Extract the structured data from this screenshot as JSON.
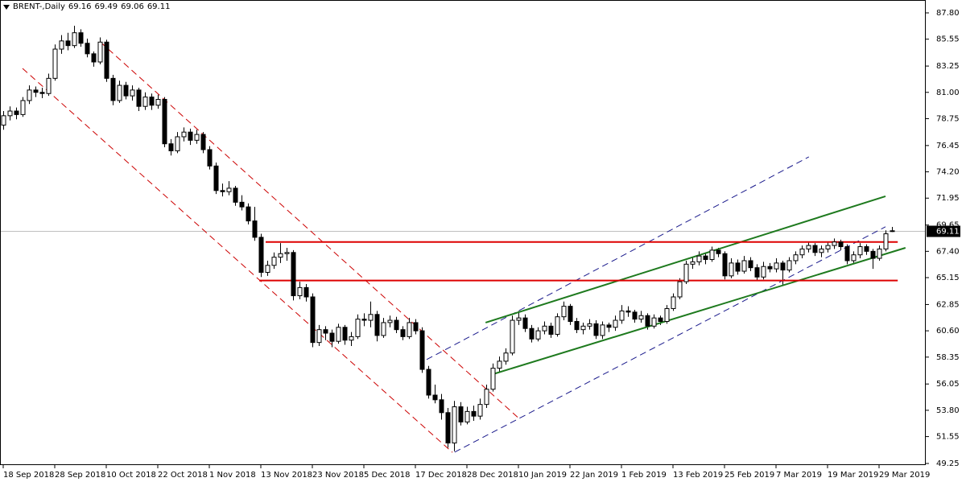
{
  "chart_data": {
    "type": "candlestick",
    "title": "BRENT-,Daily",
    "x": [
      "18 Sep 2018",
      null,
      null,
      null,
      null,
      null,
      null,
      null,
      "28 Sep 2018",
      null,
      null,
      null,
      null,
      null,
      null,
      null,
      "10 Oct 2018",
      null,
      null,
      null,
      null,
      null,
      null,
      null,
      "22 Oct 2018",
      null,
      null,
      null,
      null,
      null,
      null,
      null,
      "1 Nov 2018",
      null,
      null,
      null,
      null,
      null,
      null,
      null,
      "13 Nov 2018",
      null,
      null,
      null,
      null,
      null,
      null,
      null,
      "23 Nov 2018",
      null,
      null,
      null,
      null,
      null,
      null,
      null,
      "5 Dec 2018",
      null,
      null,
      null,
      null,
      null,
      null,
      null,
      "17 Dec 2018",
      null,
      null,
      null,
      null,
      null,
      null,
      null,
      "28 Dec 2018",
      null,
      null,
      null,
      null,
      null,
      null,
      null,
      "10 Jan 2019",
      null,
      null,
      null,
      null,
      null,
      null,
      null,
      "22 Jan 2019",
      null,
      null,
      null,
      null,
      null,
      null,
      null,
      "1 Feb 2019",
      null,
      null,
      null,
      null,
      null,
      null,
      null,
      "13 Feb 2019",
      null,
      null,
      null,
      null,
      null,
      null,
      null,
      "25 Feb 2019",
      null,
      null,
      null,
      null,
      null,
      null,
      null,
      "7 Mar 2019",
      null,
      null,
      null,
      null,
      null,
      null,
      null,
      "19 Mar 2019",
      null,
      null,
      null,
      null,
      null,
      null,
      null,
      "29 Mar 2019",
      null,
      null
    ],
    "ohlc": [
      [
        78.2,
        79.4,
        77.8,
        79.0
      ],
      [
        79.0,
        79.8,
        78.6,
        79.4
      ],
      [
        79.4,
        79.7,
        78.7,
        79.1
      ],
      [
        79.1,
        80.6,
        78.9,
        80.3
      ],
      [
        80.3,
        81.6,
        80.0,
        81.2
      ],
      [
        81.2,
        81.5,
        80.6,
        81.0
      ],
      [
        81.0,
        81.4,
        80.5,
        80.9
      ],
      [
        80.9,
        82.6,
        80.7,
        82.2
      ],
      [
        82.2,
        85.1,
        82.0,
        84.7
      ],
      [
        84.7,
        85.9,
        84.3,
        85.4
      ],
      [
        85.4,
        86.1,
        84.6,
        85.0
      ],
      [
        85.0,
        86.7,
        84.8,
        86.1
      ],
      [
        86.1,
        86.4,
        84.9,
        85.2
      ],
      [
        85.2,
        85.6,
        84.0,
        84.3
      ],
      [
        84.3,
        84.5,
        83.2,
        83.6
      ],
      [
        83.6,
        85.7,
        83.4,
        85.3
      ],
      [
        85.3,
        85.5,
        81.9,
        82.2
      ],
      [
        82.2,
        82.5,
        79.9,
        80.3
      ],
      [
        80.3,
        82.0,
        80.1,
        81.6
      ],
      [
        81.6,
        81.9,
        80.4,
        80.7
      ],
      [
        80.7,
        81.6,
        80.3,
        81.2
      ],
      [
        81.2,
        81.4,
        79.4,
        79.8
      ],
      [
        79.8,
        81.0,
        79.5,
        80.6
      ],
      [
        80.6,
        80.9,
        79.5,
        79.9
      ],
      [
        79.9,
        80.8,
        79.6,
        80.4
      ],
      [
        80.4,
        80.6,
        76.3,
        76.6
      ],
      [
        76.6,
        77.0,
        75.6,
        76.0
      ],
      [
        76.0,
        77.6,
        75.8,
        77.2
      ],
      [
        77.2,
        78.0,
        76.8,
        77.6
      ],
      [
        77.6,
        77.9,
        76.5,
        76.9
      ],
      [
        76.9,
        77.8,
        76.6,
        77.4
      ],
      [
        77.4,
        77.6,
        75.8,
        76.1
      ],
      [
        76.1,
        76.4,
        74.4,
        74.7
      ],
      [
        74.7,
        75.0,
        72.3,
        72.6
      ],
      [
        72.6,
        73.2,
        72.1,
        72.5
      ],
      [
        72.5,
        73.4,
        72.2,
        72.8
      ],
      [
        72.8,
        73.0,
        71.3,
        71.6
      ],
      [
        71.6,
        72.2,
        70.9,
        71.2
      ],
      [
        71.2,
        71.5,
        69.7,
        70.0
      ],
      [
        70.0,
        71.2,
        68.3,
        68.6
      ],
      [
        68.6,
        68.9,
        65.2,
        65.6
      ],
      [
        65.6,
        66.6,
        65.3,
        66.2
      ],
      [
        66.2,
        67.3,
        65.9,
        66.9
      ],
      [
        66.9,
        68.1,
        66.4,
        67.2
      ],
      [
        67.2,
        67.7,
        66.6,
        67.3
      ],
      [
        67.3,
        67.5,
        63.2,
        63.6
      ],
      [
        63.6,
        64.8,
        63.3,
        64.3
      ],
      [
        64.3,
        64.6,
        63.1,
        63.5
      ],
      [
        63.5,
        63.8,
        59.2,
        59.6
      ],
      [
        59.6,
        61.1,
        59.3,
        60.7
      ],
      [
        60.7,
        61.0,
        59.8,
        60.4
      ],
      [
        60.4,
        60.7,
        59.2,
        59.7
      ],
      [
        59.7,
        61.2,
        59.5,
        60.9
      ],
      [
        60.9,
        61.1,
        59.4,
        59.8
      ],
      [
        59.8,
        60.5,
        59.3,
        60.1
      ],
      [
        60.1,
        62.0,
        59.9,
        61.6
      ],
      [
        61.6,
        62.1,
        61.0,
        61.5
      ],
      [
        61.5,
        63.1,
        60.9,
        62.0
      ],
      [
        62.0,
        62.3,
        59.7,
        60.2
      ],
      [
        60.2,
        61.7,
        60.0,
        61.3
      ],
      [
        61.3,
        61.9,
        60.9,
        61.5
      ],
      [
        61.5,
        61.8,
        60.4,
        60.7
      ],
      [
        60.7,
        61.0,
        59.8,
        60.1
      ],
      [
        60.1,
        61.7,
        59.9,
        61.3
      ],
      [
        61.3,
        61.6,
        60.3,
        60.6
      ],
      [
        60.6,
        60.9,
        57.0,
        57.3
      ],
      [
        57.3,
        57.6,
        54.8,
        55.1
      ],
      [
        55.1,
        56.0,
        54.4,
        54.7
      ],
      [
        54.7,
        55.2,
        53.0,
        53.6
      ],
      [
        53.6,
        54.0,
        50.6,
        51.0
      ],
      [
        51.0,
        54.6,
        50.3,
        54.1
      ],
      [
        54.1,
        54.5,
        52.5,
        52.8
      ],
      [
        52.8,
        54.1,
        52.6,
        53.7
      ],
      [
        53.7,
        54.2,
        52.9,
        53.3
      ],
      [
        53.3,
        54.8,
        53.0,
        54.3
      ],
      [
        54.3,
        56.0,
        54.0,
        55.6
      ],
      [
        55.6,
        57.8,
        55.4,
        57.4
      ],
      [
        57.4,
        58.4,
        57.1,
        58.0
      ],
      [
        58.0,
        59.1,
        57.7,
        58.7
      ],
      [
        58.7,
        61.9,
        58.5,
        61.5
      ],
      [
        61.5,
        62.3,
        61.1,
        61.7
      ],
      [
        61.7,
        62.0,
        60.5,
        60.8
      ],
      [
        60.8,
        61.1,
        59.6,
        59.9
      ],
      [
        59.9,
        60.9,
        59.7,
        60.6
      ],
      [
        60.6,
        61.4,
        60.3,
        61.0
      ],
      [
        61.0,
        61.3,
        60.0,
        60.3
      ],
      [
        60.3,
        62.1,
        60.1,
        61.8
      ],
      [
        61.8,
        63.1,
        61.5,
        62.7
      ],
      [
        62.7,
        62.9,
        61.1,
        61.4
      ],
      [
        61.4,
        61.7,
        60.4,
        60.7
      ],
      [
        60.7,
        61.3,
        60.3,
        61.0
      ],
      [
        61.0,
        61.6,
        60.7,
        61.2
      ],
      [
        61.2,
        61.5,
        59.9,
        60.2
      ],
      [
        60.2,
        61.4,
        59.9,
        61.1
      ],
      [
        61.1,
        61.3,
        60.5,
        60.9
      ],
      [
        60.9,
        61.9,
        60.6,
        61.5
      ],
      [
        61.5,
        62.8,
        61.2,
        62.3
      ],
      [
        62.3,
        62.7,
        61.8,
        62.2
      ],
      [
        62.2,
        62.4,
        61.3,
        61.6
      ],
      [
        61.6,
        62.3,
        61.3,
        61.9
      ],
      [
        61.9,
        62.1,
        60.7,
        61.0
      ],
      [
        61.0,
        62.0,
        60.8,
        61.7
      ],
      [
        61.7,
        61.9,
        61.1,
        61.4
      ],
      [
        61.4,
        62.8,
        61.2,
        62.5
      ],
      [
        62.5,
        63.8,
        62.3,
        63.5
      ],
      [
        63.5,
        65.1,
        63.3,
        64.8
      ],
      [
        64.8,
        66.6,
        64.6,
        66.3
      ],
      [
        66.3,
        66.9,
        65.9,
        66.5
      ],
      [
        66.5,
        67.4,
        66.2,
        67.0
      ],
      [
        67.0,
        67.3,
        66.3,
        66.7
      ],
      [
        66.7,
        67.8,
        66.5,
        67.5
      ],
      [
        67.5,
        67.7,
        66.9,
        67.2
      ],
      [
        67.2,
        67.4,
        65.0,
        65.3
      ],
      [
        65.3,
        66.8,
        65.1,
        66.4
      ],
      [
        66.4,
        66.7,
        65.4,
        65.7
      ],
      [
        65.7,
        67.0,
        65.5,
        66.6
      ],
      [
        66.6,
        66.9,
        65.7,
        66.0
      ],
      [
        66.0,
        66.3,
        64.9,
        65.2
      ],
      [
        65.2,
        66.5,
        65.0,
        66.1
      ],
      [
        66.1,
        66.4,
        65.6,
        65.9
      ],
      [
        65.9,
        66.8,
        65.6,
        66.4
      ],
      [
        66.4,
        66.6,
        64.5,
        65.8
      ],
      [
        65.8,
        66.9,
        65.6,
        66.6
      ],
      [
        66.6,
        67.4,
        66.3,
        67.1
      ],
      [
        67.1,
        67.9,
        66.8,
        67.6
      ],
      [
        67.6,
        68.2,
        67.3,
        67.9
      ],
      [
        67.9,
        68.1,
        67.0,
        67.3
      ],
      [
        67.3,
        67.9,
        66.9,
        67.6
      ],
      [
        67.6,
        68.2,
        67.3,
        67.9
      ],
      [
        67.9,
        68.5,
        67.6,
        68.2
      ],
      [
        68.2,
        68.4,
        67.5,
        67.8
      ],
      [
        67.8,
        68.0,
        66.3,
        66.6
      ],
      [
        66.6,
        67.4,
        66.4,
        67.1
      ],
      [
        67.1,
        68.1,
        66.8,
        67.8
      ],
      [
        67.8,
        68.0,
        67.1,
        67.4
      ],
      [
        67.4,
        67.6,
        65.9,
        66.8
      ],
      [
        66.8,
        67.9,
        66.6,
        67.6
      ],
      [
        67.6,
        69.2,
        67.4,
        68.9
      ],
      [
        69.16,
        69.49,
        69.06,
        69.11
      ]
    ],
    "ylim": [
      49.25,
      87.8
    ],
    "yticks": [
      {
        "value": 49.25,
        "label": "49.25"
      },
      {
        "value": 51.55,
        "label": "51.55"
      },
      {
        "value": 53.8,
        "label": "53.80"
      },
      {
        "value": 56.05,
        "label": "56.05"
      },
      {
        "value": 58.35,
        "label": "58.35"
      },
      {
        "value": 60.6,
        "label": "60.60"
      },
      {
        "value": 62.85,
        "label": "62.85"
      },
      {
        "value": 65.15,
        "label": "65.15"
      },
      {
        "value": 67.4,
        "label": "67.40"
      },
      {
        "value": 69.65,
        "label": "69.65"
      },
      {
        "value": 71.95,
        "label": "71.95"
      },
      {
        "value": 74.2,
        "label": "74.20"
      },
      {
        "value": 76.45,
        "label": "76.45"
      },
      {
        "value": 78.75,
        "label": "78.75"
      },
      {
        "value": 81,
        "label": "81.00"
      },
      {
        "value": 83.25,
        "label": "83.25"
      },
      {
        "value": 85.55,
        "label": "85.55"
      },
      {
        "value": 87.8,
        "label": "87.80"
      }
    ],
    "up_color": "#ffffff",
    "down_color": "#000000",
    "price_line_color": "#c0c0c0",
    "lines": [
      {
        "color": "#cc0000",
        "dashed": true,
        "from": [
          15.1,
          85.3
        ],
        "to": [
          80.1,
          53.1
        ]
      },
      {
        "color": "#cc0000",
        "dashed": true,
        "from": [
          3,
          83.05
        ],
        "to": [
          69.75,
          50.2
        ]
      },
      {
        "color": "#1a1a8c",
        "dashed": true,
        "from": [
          65.75,
          58.14
        ],
        "to": [
          125.1,
          75.48
        ]
      },
      {
        "color": "#1a1a8c",
        "dashed": true,
        "from": [
          70.1,
          50.22
        ],
        "to": [
          137,
          69.5
        ]
      },
      {
        "color": "#1e7a1e",
        "dashed": false,
        "from": [
          74.9,
          61.3
        ],
        "to": [
          137,
          72.11
        ]
      },
      {
        "color": "#1e7a1e",
        "dashed": false,
        "from": [
          76.1,
          56.9
        ],
        "to": [
          140.1,
          67.7
        ]
      },
      {
        "color": "#dd0000",
        "dashed": false,
        "from": [
          40.75,
          68.2
        ],
        "to": [
          138.9,
          68.2
        ]
      },
      {
        "color": "#dd0000",
        "dashed": false,
        "from": [
          39.75,
          64.9
        ],
        "to": [
          138.9,
          64.9
        ]
      }
    ]
  }
}
